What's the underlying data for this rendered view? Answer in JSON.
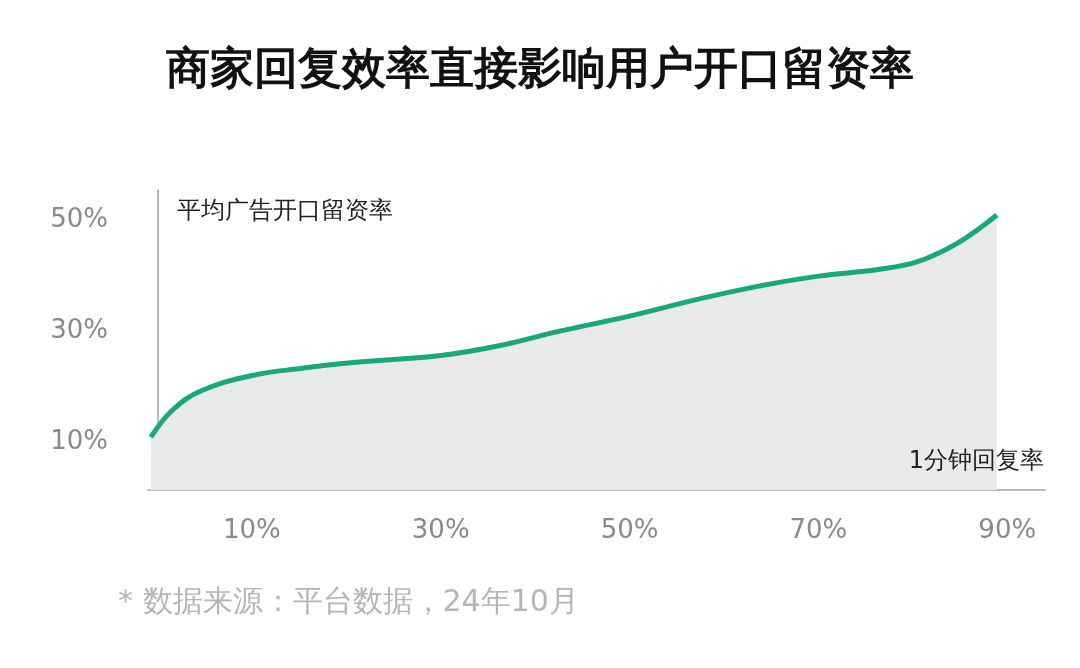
{
  "chart_data": {
    "type": "area",
    "title": "商家回复效率直接影响用户开口留资率",
    "xlabel": "1分钟回复率",
    "ylabel": "平均广告开口留资率",
    "annotations": [
      "* 数据来源：平台数据，24年10月"
    ],
    "x": [
      -0.7,
      1.6,
      4.7,
      10,
      15.3,
      20.5,
      30,
      36.3,
      42.6,
      50,
      57.4,
      63.7,
      70,
      76.3,
      80.5,
      84.7,
      88.9
    ],
    "series": [
      {
        "color": "#1aa874",
        "values": [
          10.5,
          15.4,
          18.9,
          21.6,
          22.9,
          23.9,
          25.2,
          27.0,
          29.6,
          32.3,
          35.4,
          37.7,
          39.5,
          40.7,
          42.1,
          45.4,
          50.5
        ]
      }
    ],
    "xlim": [
      -1,
      94
    ],
    "ylim": [
      1,
      55
    ],
    "xticks": [
      {
        "value": 10,
        "label": "10%"
      },
      {
        "value": 30,
        "label": "30%"
      },
      {
        "value": 50,
        "label": "50%"
      },
      {
        "value": 70,
        "label": "70%"
      },
      {
        "value": 90,
        "label": "90%"
      }
    ],
    "yticks": [
      {
        "value": 10,
        "label": "10%"
      },
      {
        "value": 30,
        "label": "30%"
      },
      {
        "value": 50,
        "label": "50%"
      }
    ],
    "grid": false,
    "marker": "none"
  }
}
